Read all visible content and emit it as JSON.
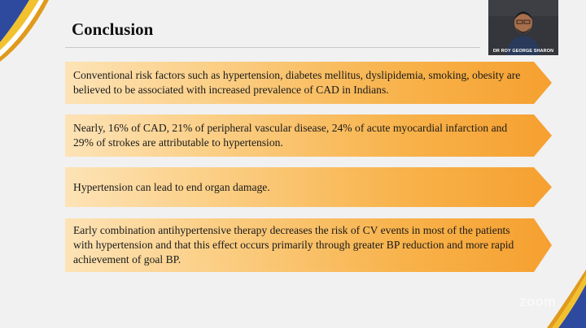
{
  "slide": {
    "title": "Conclusion",
    "points": [
      "Conventional risk factors such as hypertension, diabetes mellitus, dyslipidemia, smoking, obesity are believed to be associated with increased prevalence of CAD in Indians.",
      "Nearly, 16% of CAD, 21% of peripheral vascular disease, 24% of acute myocardial infarction and 29% of strokes are attributable to hypertension.",
      "Hypertension can lead to end organ damage.",
      "Early combination antihypertensive therapy decreases the risk of CV events in most of the patients with hypertension and that this effect occurs primarily through greater BP reduction and more rapid achievement of goal BP."
    ]
  },
  "video": {
    "presenter_name": "DR ROY GEORGE SHARON"
  },
  "watermark": "zoom",
  "colors": {
    "accent_orange": "#f6a030",
    "swoosh_blue": "#2e4a9e",
    "swoosh_yellow": "#f2c12e"
  }
}
